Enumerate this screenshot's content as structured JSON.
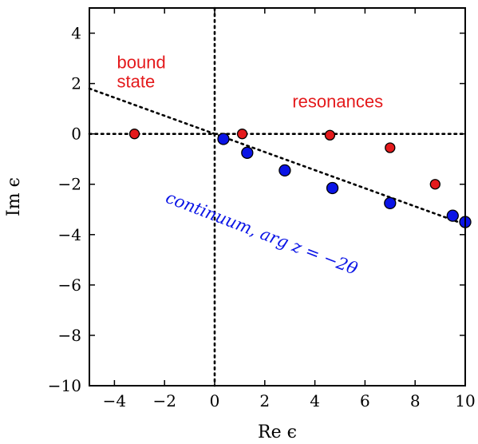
{
  "chart_data": {
    "type": "scatter",
    "xlabel": "Re ϵ",
    "ylabel": "Im ϵ",
    "xlim": [
      -5,
      10
    ],
    "ylim": [
      -10,
      5
    ],
    "xticks": [
      -4,
      -2,
      0,
      2,
      4,
      6,
      8,
      10
    ],
    "yticks": [
      4,
      2,
      0,
      -2,
      -4,
      -6,
      -8,
      -10
    ],
    "xtick_labels": [
      "−4",
      "−2",
      "0",
      "2",
      "4",
      "6",
      "8",
      "10"
    ],
    "ytick_labels": [
      "4",
      "2",
      "0",
      "−2",
      "−4",
      "−6",
      "−8",
      "−10"
    ],
    "grid": false,
    "series": [
      {
        "color": "#e41a1c",
        "points": [
          {
            "x": -3.2,
            "y": 0.0
          },
          {
            "x": 1.1,
            "y": 0.0
          },
          {
            "x": 4.6,
            "y": -0.05
          },
          {
            "x": 7.0,
            "y": -0.55
          },
          {
            "x": 8.8,
            "y": -2.0
          }
        ]
      },
      {
        "color": "#0a14e6",
        "points": [
          {
            "x": 0.35,
            "y": -0.2
          },
          {
            "x": 1.3,
            "y": -0.75
          },
          {
            "x": 2.8,
            "y": -1.45
          },
          {
            "x": 4.7,
            "y": -2.15
          },
          {
            "x": 7.0,
            "y": -2.75
          },
          {
            "x": 9.5,
            "y": -3.25
          },
          {
            "x": 10.0,
            "y": -3.5
          }
        ]
      }
    ],
    "reference_lines": [
      {
        "kind": "horizontal",
        "y": 0,
        "style": "dotted"
      },
      {
        "kind": "vertical",
        "x": 0,
        "style": "dotted"
      },
      {
        "kind": "line",
        "from": [
          -5,
          1.8
        ],
        "to": [
          10,
          -3.6
        ],
        "style": "dotted"
      }
    ],
    "annotations": [
      {
        "id": "bound",
        "lines": [
          "bound",
          "state"
        ],
        "color": "#e41a1c",
        "x": -3.9,
        "y": 2.6
      },
      {
        "id": "resonances",
        "lines": [
          "resonances"
        ],
        "color": "#e41a1c",
        "x": 3.1,
        "y": 1.05
      },
      {
        "id": "continuum",
        "lines": [
          "continuum, arg z = −2θ"
        ],
        "color": "#0a14e6",
        "x": -2.0,
        "y": -2.7,
        "rotation": 21
      }
    ]
  }
}
